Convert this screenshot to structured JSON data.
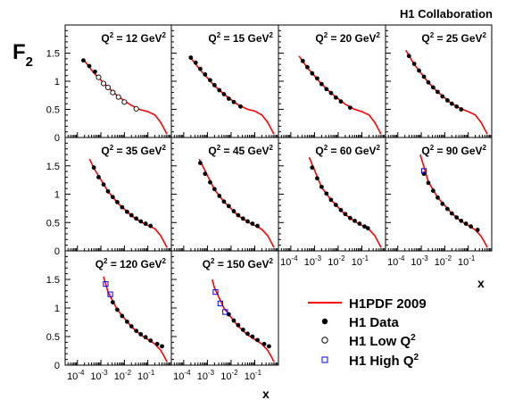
{
  "header": {
    "collaboration": "H1 Collaboration"
  },
  "y_axis": {
    "label": "F",
    "subscript": "2",
    "ticks": [
      "0",
      "0.5",
      "1",
      "1.5"
    ]
  },
  "x_axis": {
    "label": "x",
    "ticks": [
      {
        "base": "10",
        "exp": "-4"
      },
      {
        "base": "10",
        "exp": "-3"
      },
      {
        "base": "10",
        "exp": "-2"
      },
      {
        "base": "10",
        "exp": "-1"
      }
    ]
  },
  "legend": {
    "fit": "H1PDF 2009",
    "data": "H1 Data",
    "low_q2": {
      "text": "H1 Low Q",
      "sup": "2"
    },
    "high_q2": {
      "text": "H1 High Q",
      "sup": "2"
    }
  },
  "colors": {
    "fit_curve": "#ff0000",
    "high_q2_marker": "#0000ff",
    "data_marker": "#000000",
    "frame": "#000000"
  },
  "chart_data": {
    "type": "scatter",
    "title": "",
    "xlabel": "x",
    "ylabel": "F2",
    "x_scale": "log",
    "xlim": [
      3e-05,
      1.0
    ],
    "ylim": [
      0,
      2.0
    ],
    "grid": false,
    "legend_position": "bottom-right",
    "panels": [
      {
        "q2_label": "Q",
        "q2_value": "= 12 GeV",
        "curve": [
          [
            0.00017,
            1.4
          ],
          [
            0.0005,
            1.15
          ],
          [
            0.002,
            0.89
          ],
          [
            0.005,
            0.74
          ],
          [
            0.02,
            0.57
          ],
          [
            0.05,
            0.49
          ],
          [
            0.1,
            0.46
          ],
          [
            0.2,
            0.4
          ],
          [
            0.35,
            0.27
          ],
          [
            0.5,
            0.15
          ],
          [
            0.65,
            0.06
          ]
        ],
        "series": [
          {
            "name": "H1 Data",
            "points": [
              [
                0.00018,
                1.37
              ],
              [
                0.00032,
                1.27
              ],
              [
                0.00056,
                1.17
              ]
            ]
          },
          {
            "name": "H1 Low Q2",
            "points": [
              [
                0.0008,
                1.07
              ],
              [
                0.0013,
                0.96
              ],
              [
                0.002,
                0.89
              ],
              [
                0.0032,
                0.8
              ],
              [
                0.0056,
                0.72
              ],
              [
                0.01,
                0.63
              ],
              [
                0.032,
                0.51
              ]
            ]
          }
        ]
      },
      {
        "q2_label": "Q",
        "q2_value": "= 15 GeV",
        "curve": [
          [
            0.00017,
            1.45
          ],
          [
            0.0005,
            1.2
          ],
          [
            0.002,
            0.92
          ],
          [
            0.005,
            0.77
          ],
          [
            0.02,
            0.58
          ],
          [
            0.05,
            0.5
          ],
          [
            0.1,
            0.47
          ],
          [
            0.2,
            0.4
          ],
          [
            0.35,
            0.27
          ],
          [
            0.5,
            0.15
          ],
          [
            0.65,
            0.06
          ]
        ],
        "series": [
          {
            "name": "H1 Data",
            "points": [
              [
                0.0002,
                1.42
              ],
              [
                0.00032,
                1.33
              ],
              [
                0.0005,
                1.22
              ],
              [
                0.0008,
                1.12
              ],
              [
                0.0013,
                1.02
              ],
              [
                0.002,
                0.93
              ],
              [
                0.0032,
                0.84
              ],
              [
                0.005,
                0.77
              ],
              [
                0.008,
                0.69
              ],
              [
                0.013,
                0.63
              ],
              [
                0.025,
                0.55
              ]
            ]
          }
        ]
      },
      {
        "q2_label": "Q",
        "q2_value": "= 20 GeV",
        "curve": [
          [
            0.00022,
            1.45
          ],
          [
            0.0005,
            1.24
          ],
          [
            0.002,
            0.95
          ],
          [
            0.005,
            0.79
          ],
          [
            0.02,
            0.59
          ],
          [
            0.05,
            0.5
          ],
          [
            0.1,
            0.46
          ],
          [
            0.2,
            0.4
          ],
          [
            0.35,
            0.27
          ],
          [
            0.5,
            0.15
          ],
          [
            0.65,
            0.06
          ]
        ],
        "series": [
          {
            "name": "H1 Data",
            "points": [
              [
                0.00032,
                1.36
              ],
              [
                0.0005,
                1.25
              ],
              [
                0.0008,
                1.14
              ],
              [
                0.0013,
                1.05
              ],
              [
                0.002,
                0.95
              ],
              [
                0.0032,
                0.86
              ],
              [
                0.005,
                0.79
              ],
              [
                0.008,
                0.71
              ],
              [
                0.013,
                0.64
              ],
              [
                0.032,
                0.53
              ]
            ]
          }
        ]
      },
      {
        "q2_label": "Q",
        "q2_value": "= 25 GeV",
        "curve": [
          [
            0.00022,
            1.55
          ],
          [
            0.0005,
            1.3
          ],
          [
            0.002,
            0.98
          ],
          [
            0.005,
            0.81
          ],
          [
            0.02,
            0.6
          ],
          [
            0.05,
            0.51
          ],
          [
            0.1,
            0.46
          ],
          [
            0.2,
            0.4
          ],
          [
            0.35,
            0.27
          ],
          [
            0.5,
            0.15
          ],
          [
            0.65,
            0.06
          ]
        ],
        "series": [
          {
            "name": "H1 Data",
            "points": [
              [
                0.0003,
                1.45
              ],
              [
                0.0005,
                1.31
              ],
              [
                0.0008,
                1.19
              ],
              [
                0.0013,
                1.08
              ],
              [
                0.002,
                0.98
              ],
              [
                0.0032,
                0.89
              ],
              [
                0.005,
                0.81
              ],
              [
                0.008,
                0.73
              ],
              [
                0.013,
                0.66
              ],
              [
                0.02,
                0.6
              ],
              [
                0.032,
                0.55
              ],
              [
                0.05,
                0.5
              ]
            ]
          }
        ]
      },
      {
        "q2_label": "Q",
        "q2_value": "= 35 GeV",
        "curve": [
          [
            0.00033,
            1.62
          ],
          [
            0.0005,
            1.46
          ],
          [
            0.002,
            1.05
          ],
          [
            0.005,
            0.85
          ],
          [
            0.02,
            0.62
          ],
          [
            0.05,
            0.51
          ],
          [
            0.1,
            0.45
          ],
          [
            0.2,
            0.39
          ],
          [
            0.35,
            0.27
          ],
          [
            0.5,
            0.15
          ],
          [
            0.65,
            0.06
          ]
        ],
        "series": [
          {
            "name": "H1 Data",
            "points": [
              [
                0.0005,
                1.47
              ],
              [
                0.0008,
                1.3
              ],
              [
                0.0013,
                1.17
              ],
              [
                0.002,
                1.05
              ],
              [
                0.0032,
                0.95
              ],
              [
                0.005,
                0.86
              ],
              [
                0.008,
                0.77
              ],
              [
                0.013,
                0.69
              ],
              [
                0.02,
                0.63
              ],
              [
                0.032,
                0.57
              ],
              [
                0.05,
                0.52
              ],
              [
                0.08,
                0.48
              ],
              [
                0.13,
                0.44
              ]
            ]
          }
        ]
      },
      {
        "q2_label": "Q",
        "q2_value": "= 45 GeV",
        "curve": [
          [
            0.00045,
            1.62
          ],
          [
            0.002,
            1.08
          ],
          [
            0.005,
            0.87
          ],
          [
            0.02,
            0.62
          ],
          [
            0.05,
            0.51
          ],
          [
            0.1,
            0.45
          ],
          [
            0.2,
            0.38
          ],
          [
            0.35,
            0.27
          ],
          [
            0.5,
            0.15
          ],
          [
            0.65,
            0.06
          ]
        ],
        "series": [
          {
            "name": "H1 Data",
            "points": [
              [
                0.0005,
                1.55
              ],
              [
                0.0008,
                1.36
              ],
              [
                0.0013,
                1.21
              ],
              [
                0.002,
                1.09
              ],
              [
                0.0032,
                0.97
              ],
              [
                0.005,
                0.87
              ],
              [
                0.008,
                0.79
              ],
              [
                0.013,
                0.7
              ],
              [
                0.02,
                0.63
              ],
              [
                0.032,
                0.57
              ],
              [
                0.05,
                0.52
              ],
              [
                0.08,
                0.48
              ],
              [
                0.13,
                0.44
              ]
            ]
          }
        ]
      },
      {
        "q2_label": "Q",
        "q2_value": "= 60 GeV",
        "curve": [
          [
            0.0006,
            1.65
          ],
          [
            0.002,
            1.12
          ],
          [
            0.005,
            0.9
          ],
          [
            0.02,
            0.64
          ],
          [
            0.05,
            0.52
          ],
          [
            0.1,
            0.45
          ],
          [
            0.2,
            0.38
          ],
          [
            0.35,
            0.27
          ],
          [
            0.5,
            0.15
          ],
          [
            0.65,
            0.06
          ]
        ],
        "series": [
          {
            "name": "H1 Data",
            "points": [
              [
                0.0008,
                1.47
              ],
              [
                0.0013,
                1.28
              ],
              [
                0.002,
                1.13
              ],
              [
                0.0032,
                1.01
              ],
              [
                0.005,
                0.9
              ],
              [
                0.008,
                0.81
              ],
              [
                0.013,
                0.72
              ],
              [
                0.02,
                0.65
              ],
              [
                0.032,
                0.58
              ],
              [
                0.05,
                0.53
              ],
              [
                0.08,
                0.48
              ],
              [
                0.13,
                0.43
              ],
              [
                0.18,
                0.4
              ]
            ]
          }
        ]
      },
      {
        "q2_label": "Q",
        "q2_value": "= 90 GeV",
        "curve": [
          [
            0.0009,
            1.7
          ],
          [
            0.002,
            1.22
          ],
          [
            0.005,
            0.94
          ],
          [
            0.02,
            0.66
          ],
          [
            0.05,
            0.52
          ],
          [
            0.1,
            0.45
          ],
          [
            0.2,
            0.37
          ],
          [
            0.35,
            0.26
          ],
          [
            0.5,
            0.15
          ],
          [
            0.65,
            0.06
          ]
        ],
        "series": [
          {
            "name": "H1 Data",
            "points": [
              [
                0.0013,
                1.36
              ],
              [
                0.002,
                1.2
              ],
              [
                0.0032,
                1.06
              ],
              [
                0.005,
                0.94
              ],
              [
                0.008,
                0.83
              ],
              [
                0.013,
                0.74
              ],
              [
                0.02,
                0.66
              ],
              [
                0.032,
                0.59
              ],
              [
                0.05,
                0.53
              ],
              [
                0.08,
                0.48
              ],
              [
                0.13,
                0.43
              ],
              [
                0.25,
                0.37
              ]
            ]
          },
          {
            "name": "H1 High Q2",
            "points": [
              [
                0.0013,
                1.41
              ]
            ]
          }
        ]
      },
      {
        "q2_label": "Q",
        "q2_value": "= 120 GeV",
        "curve": [
          [
            0.0013,
            1.55
          ],
          [
            0.002,
            1.28
          ],
          [
            0.005,
            0.97
          ],
          [
            0.02,
            0.67
          ],
          [
            0.05,
            0.53
          ],
          [
            0.1,
            0.45
          ],
          [
            0.2,
            0.37
          ],
          [
            0.35,
            0.26
          ],
          [
            0.5,
            0.15
          ],
          [
            0.65,
            0.06
          ]
        ],
        "series": [
          {
            "name": "H1 Data",
            "points": [
              [
                0.0032,
                1.1
              ],
              [
                0.005,
                0.97
              ],
              [
                0.008,
                0.86
              ],
              [
                0.013,
                0.76
              ],
              [
                0.02,
                0.68
              ],
              [
                0.032,
                0.6
              ],
              [
                0.05,
                0.54
              ],
              [
                0.08,
                0.49
              ],
              [
                0.13,
                0.43
              ],
              [
                0.25,
                0.37
              ],
              [
                0.4,
                0.33
              ]
            ]
          },
          {
            "name": "H1 High Q2",
            "points": [
              [
                0.0016,
                1.42
              ],
              [
                0.0025,
                1.24
              ]
            ]
          }
        ]
      },
      {
        "q2_label": "Q",
        "q2_value": "= 150 GeV",
        "curve": [
          [
            0.0016,
            1.5
          ],
          [
            0.002,
            1.35
          ],
          [
            0.005,
            1.0
          ],
          [
            0.02,
            0.68
          ],
          [
            0.05,
            0.53
          ],
          [
            0.1,
            0.45
          ],
          [
            0.2,
            0.37
          ],
          [
            0.35,
            0.26
          ],
          [
            0.5,
            0.15
          ],
          [
            0.65,
            0.06
          ]
        ],
        "series": [
          {
            "name": "H1 Data",
            "points": [
              [
                0.008,
                0.89
              ],
              [
                0.013,
                0.78
              ],
              [
                0.02,
                0.7
              ],
              [
                0.032,
                0.62
              ],
              [
                0.05,
                0.55
              ],
              [
                0.08,
                0.5
              ],
              [
                0.13,
                0.44
              ],
              [
                0.25,
                0.37
              ],
              [
                0.4,
                0.33
              ]
            ]
          },
          {
            "name": "H1 High Q2",
            "points": [
              [
                0.0022,
                1.28
              ],
              [
                0.0035,
                1.08
              ],
              [
                0.0056,
                0.93
              ]
            ]
          }
        ]
      }
    ]
  }
}
